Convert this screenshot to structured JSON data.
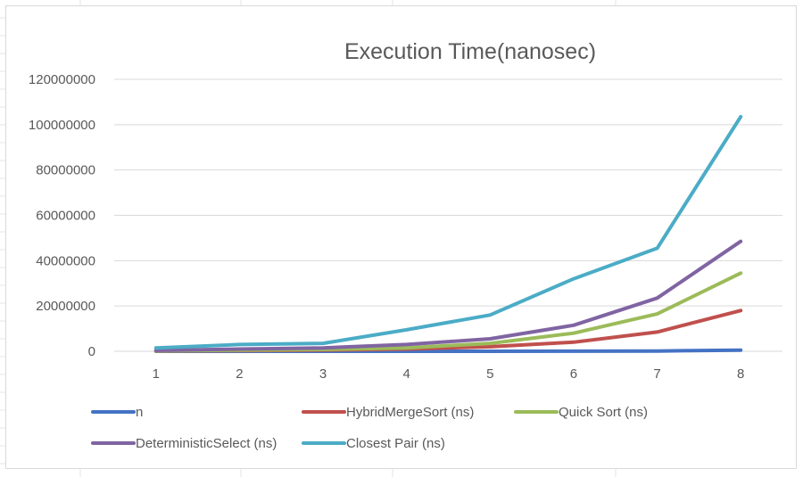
{
  "chart_data": {
    "type": "line",
    "title": "Execution Time(nanosec)",
    "xlabel": "",
    "ylabel": "",
    "categories": [
      "1",
      "2",
      "3",
      "4",
      "5",
      "6",
      "7",
      "8"
    ],
    "ylim": [
      0,
      120000000
    ],
    "yticks": [
      "0",
      "20000000",
      "40000000",
      "60000000",
      "80000000",
      "100000000",
      "120000000"
    ],
    "grid": true,
    "legend": "bottom",
    "series": [
      {
        "name": "n",
        "color": "#4472c4",
        "values": [
          100,
          500,
          1000,
          5000,
          10000,
          50000,
          100000,
          500000
        ]
      },
      {
        "name": "HybridMergeSort (ns)",
        "color": "#c0504d",
        "values": [
          100000,
          300000,
          500000,
          1000000,
          2000000,
          4000000,
          8500000,
          18000000
        ]
      },
      {
        "name": "Quick Sort (ns)",
        "color": "#9bbb59",
        "values": [
          200000,
          500000,
          800000,
          1500000,
          3500000,
          8000000,
          16500000,
          34500000
        ]
      },
      {
        "name": "DeterministicSelect (ns)",
        "color": "#8064a2",
        "values": [
          400000,
          1000000,
          1500000,
          3000000,
          5500000,
          11500000,
          23500000,
          48500000
        ]
      },
      {
        "name": "Closest Pair (ns)",
        "color": "#4bacc6",
        "values": [
          1500000,
          3000000,
          3500000,
          9500000,
          16000000,
          32000000,
          45500000,
          103500000
        ]
      }
    ]
  }
}
